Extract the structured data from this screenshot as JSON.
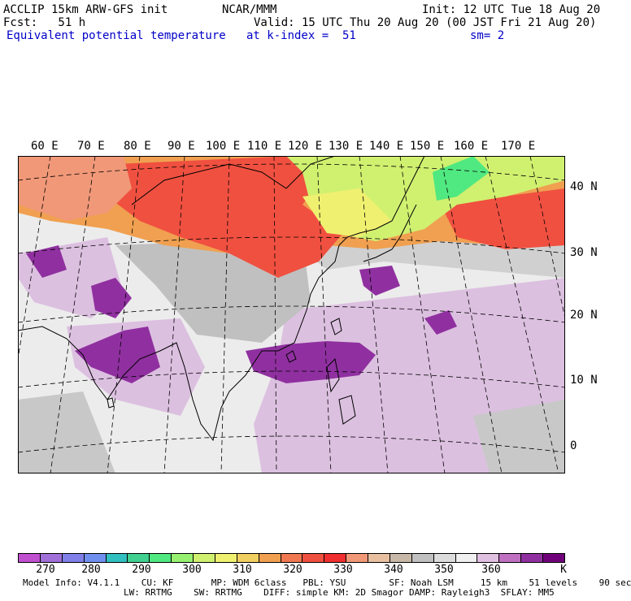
{
  "header": {
    "model": "ACCLIP 15km ARW-GFS init",
    "org": "NCAR/MMM",
    "init": "Init: 12 UTC Tue 18 Aug 20",
    "fcst": "Fcst:   51 h",
    "valid": "Valid: 15 UTC Thu 20 Aug 20 (00 JST Fri 21 Aug 20)",
    "field": "Equivalent potential temperature",
    "level": "at k-index =  51",
    "smooth": "sm= 2"
  },
  "map": {
    "lon_labels": [
      "60 E",
      "70 E",
      "80 E",
      "90 E",
      "100 E",
      "110 E",
      "120 E",
      "130 E",
      "140 E",
      "150 E",
      "160 E",
      "170 E"
    ],
    "lat_labels": [
      "40 N",
      "30 N",
      "20 N",
      "10 N",
      "0"
    ]
  },
  "colorbar": {
    "colors": [
      "#c050d0",
      "#a070d8",
      "#8080e8",
      "#7090f0",
      "#30c0c0",
      "#40d090",
      "#50e880",
      "#98f070",
      "#d0f070",
      "#f0f070",
      "#f0d060",
      "#f0a050",
      "#f07850",
      "#f05040",
      "#f03030",
      "#f09878",
      "#e8c0a0",
      "#c8b8a8",
      "#c0c0c0",
      "#dcdcdc",
      "#f0f0f0",
      "#e0c0e0",
      "#c070c0",
      "#9030a0",
      "#70007a"
    ],
    "ticks": [
      "270",
      "280",
      "290",
      "300",
      "310",
      "320",
      "330",
      "340",
      "350",
      "360"
    ],
    "unit": "K"
  },
  "model_info": {
    "line1": "Model Info: V4.1.1    CU: KF       MP: WDM 6class   PBL: YSU        SF: Noah LSM     15 km    51 levels    90 sec",
    "line2": "LW: RRTMG    SW: RRTMG    DIFF: simple KM: 2D Smagor DAMP: Rayleigh3  SFLAY: MM5"
  }
}
